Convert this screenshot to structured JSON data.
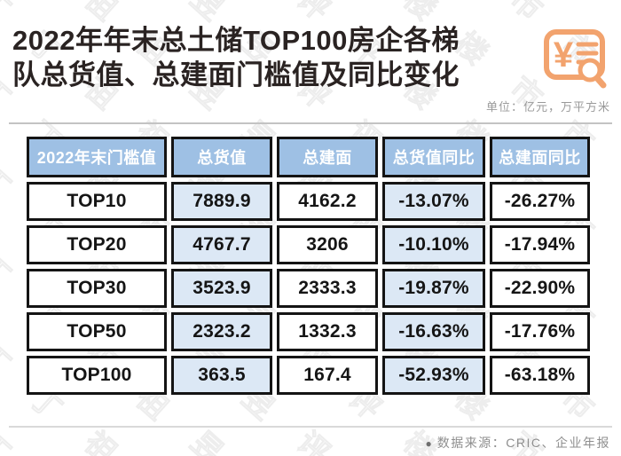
{
  "page": {
    "title_lines": [
      "2022年年末总土储TOP100房企各梯",
      "队总货值、总建面门槛值及同比变化"
    ],
    "unit_note": "单位：亿元，万平方米",
    "source_bullet": "●",
    "source_note": "数据来源：CRIC、企业年报",
    "watermark_text": "丁祖昱评楼市"
  },
  "colors": {
    "accent_orange": "#f2a36e",
    "header_blue": "#9ec0e4",
    "cell_blue": "#dce8f5",
    "border_black": "#141414",
    "title_color": "#2a2322",
    "muted_gray": "#9a9a9a"
  },
  "icon": {
    "name": "invoice-search-icon",
    "symbol": "¥"
  },
  "table": {
    "headers": [
      "2022年末门槛值",
      "总货值",
      "总建面",
      "总货值同比",
      "总建面同比"
    ],
    "rows": [
      {
        "tier": "TOP10",
        "total_value": "7889.9",
        "total_gfa": "4162.2",
        "value_yoy": "-13.07%",
        "gfa_yoy": "-26.27%"
      },
      {
        "tier": "TOP20",
        "total_value": "4767.7",
        "total_gfa": "3206",
        "value_yoy": "-10.10%",
        "gfa_yoy": "-17.94%"
      },
      {
        "tier": "TOP30",
        "total_value": "3523.9",
        "total_gfa": "2333.3",
        "value_yoy": "-19.87%",
        "gfa_yoy": "-22.90%"
      },
      {
        "tier": "TOP50",
        "total_value": "2323.2",
        "total_gfa": "1332.3",
        "value_yoy": "-16.63%",
        "gfa_yoy": "-17.76%"
      },
      {
        "tier": "TOP100",
        "total_value": "363.5",
        "total_gfa": "167.4",
        "value_yoy": "-52.93%",
        "gfa_yoy": "-63.18%"
      }
    ]
  },
  "chart_data": {
    "type": "table",
    "title": "2022年年末总土储TOP100房企各梯队总货值、总建面门槛值及同比变化",
    "unit": "亿元，万平方米",
    "columns": [
      "2022年末门槛值",
      "总货值",
      "总建面",
      "总货值同比",
      "总建面同比"
    ],
    "rows": [
      [
        "TOP10",
        7889.9,
        4162.2,
        "-13.07%",
        "-26.27%"
      ],
      [
        "TOP20",
        4767.7,
        3206,
        "-10.10%",
        "-17.94%"
      ],
      [
        "TOP30",
        3523.9,
        2333.3,
        "-19.87%",
        "-22.90%"
      ],
      [
        "TOP50",
        2323.2,
        1332.3,
        "-16.63%",
        "-17.76%"
      ],
      [
        "TOP100",
        363.5,
        167.4,
        "-52.93%",
        "-63.18%"
      ]
    ],
    "source": "数据来源：CRIC、企业年报"
  }
}
